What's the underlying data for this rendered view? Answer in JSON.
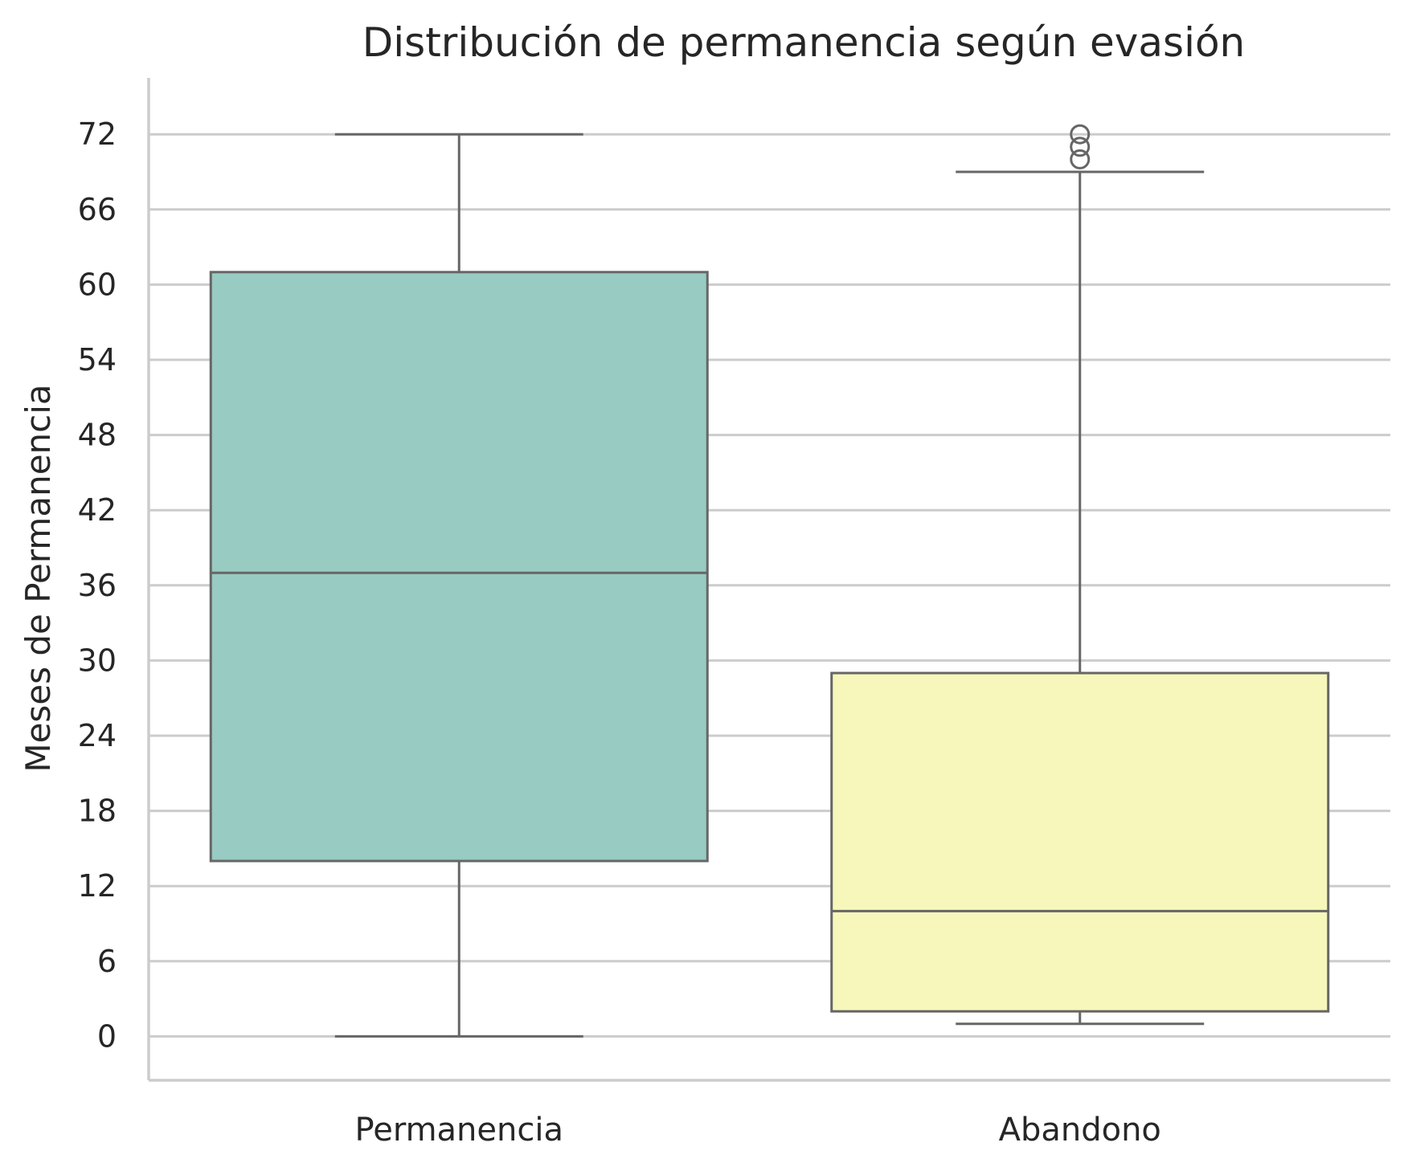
{
  "chart_data": {
    "type": "box",
    "title": "Distribución de permanencia según evasión",
    "xlabel": "",
    "ylabel": "Meses de Permanencia",
    "ylim": [
      -3.5,
      76.5
    ],
    "yticks": [
      0,
      6,
      12,
      18,
      24,
      30,
      36,
      42,
      48,
      54,
      60,
      66,
      72
    ],
    "grid": true,
    "categories": [
      "Permanencia",
      "Abandono"
    ],
    "boxes": [
      {
        "category": "Permanencia",
        "whisker_low": 0,
        "q1": 14,
        "median": 37,
        "q3": 61,
        "whisker_high": 72,
        "outliers": [],
        "color": "#98cbc2"
      },
      {
        "category": "Abandono",
        "whisker_low": 1,
        "q1": 2,
        "median": 10,
        "q3": 29,
        "whisker_high": 69,
        "outliers": [
          70,
          71,
          72
        ],
        "color": "#f7f7bb"
      }
    ],
    "colors": {
      "edge": "#666666",
      "grid": "#cccccc",
      "spine": "#cccccc",
      "text": "#262626"
    }
  }
}
